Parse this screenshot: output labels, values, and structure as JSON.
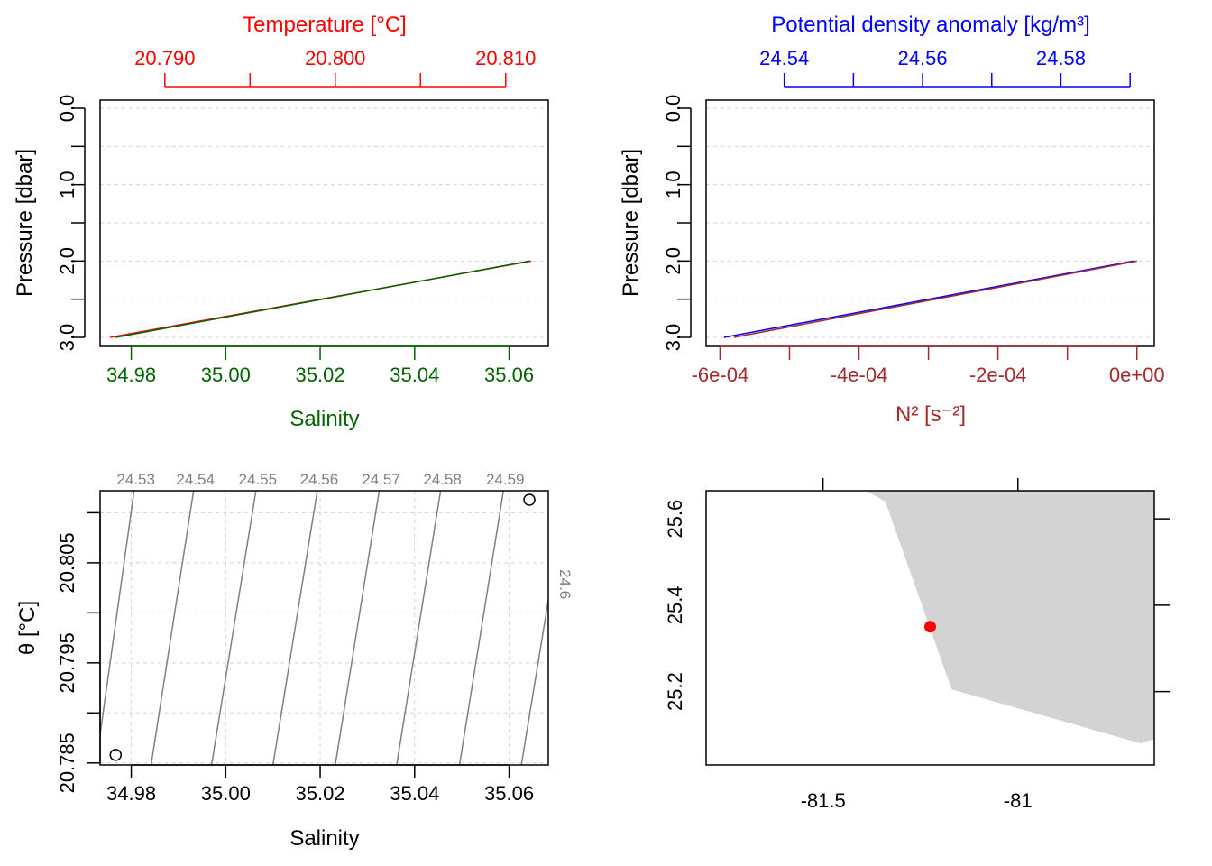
{
  "chart_data": [
    {
      "id": "profile-salinity-temperature",
      "type": "line",
      "top_axis_label": "Temperature [°C]",
      "top_axis_color": "#ff0000",
      "top_ticks": [
        "20.790",
        "20.800",
        "20.810"
      ],
      "top_ticks_all": [
        20.79,
        20.795,
        20.8,
        20.805,
        20.81
      ],
      "top_range": [
        20.7862,
        20.8125
      ],
      "bottom_axis_label": "Salinity",
      "bottom_axis_color": "#006400",
      "bottom_ticks": [
        "34.98",
        "35.00",
        "35.02",
        "35.04",
        "35.06"
      ],
      "bottom_ticks_all": [
        34.98,
        35.0,
        35.02,
        35.04,
        35.06
      ],
      "bottom_range": [
        34.9734,
        35.0683
      ],
      "ylabel": "Pressure [dbar]",
      "y_ticks": [
        "0.0",
        "1.0",
        "2.0",
        "3.0"
      ],
      "y_ticks_all": [
        0.0,
        0.5,
        1.0,
        1.5,
        2.0,
        2.5,
        3.0
      ],
      "y_range": [
        0.0,
        3.0
      ],
      "y_reversed": true,
      "grid": true,
      "series": [
        {
          "color": "#006400",
          "pressure": [
            2.0,
            3.0
          ],
          "salinity": [
            35.0643,
            34.9767
          ]
        },
        {
          "color": "#ff0000",
          "pressure": [
            2.0,
            3.0
          ],
          "temperature": [
            20.8115,
            20.7868
          ]
        }
      ]
    },
    {
      "id": "profile-n2-density",
      "type": "line",
      "top_axis_label": "Potential density anomaly [kg/m³]",
      "top_axis_color": "#0000ff",
      "top_ticks": [
        "24.54",
        "24.56",
        "24.58"
      ],
      "top_ticks_all": [
        24.54,
        24.55,
        24.56,
        24.57,
        24.58,
        24.59
      ],
      "top_range": [
        24.5287,
        24.5935
      ],
      "bottom_axis_label": "N² [s⁻²]",
      "bottom_axis_color": "#a52a2a",
      "bottom_ticks": [
        "-6e-04",
        "-4e-04",
        "-2e-04",
        "0e+00"
      ],
      "bottom_ticks_all": [
        -0.0006,
        -0.0005,
        -0.0004,
        -0.0003,
        -0.0002,
        -0.0001,
        0.0
      ],
      "bottom_range": [
        -0.00062,
        2.5e-05
      ],
      "ylabel": "Pressure [dbar]",
      "y_ticks": [
        "0.0",
        "1.0",
        "2.0",
        "3.0"
      ],
      "y_ticks_all": [
        0.0,
        0.5,
        1.0,
        1.5,
        2.0,
        2.5,
        3.0
      ],
      "y_range": [
        0.0,
        3.0
      ],
      "y_reversed": true,
      "grid": true,
      "series": [
        {
          "color": "#a52a2a",
          "pressure": [
            2.0,
            3.0
          ],
          "n2": [
            0.0,
            -0.00058
          ]
        },
        {
          "color": "#0000ff",
          "pressure": [
            2.0,
            3.0
          ],
          "sigma_theta": [
            24.5905,
            24.5313
          ]
        }
      ]
    },
    {
      "id": "ts-diagram",
      "type": "scatter",
      "xlabel": "Salinity",
      "ylabel": "θ [°C]",
      "x_ticks": [
        "34.98",
        "35.00",
        "35.02",
        "35.04",
        "35.06"
      ],
      "x_ticks_all": [
        34.98,
        35.0,
        35.02,
        35.04,
        35.06
      ],
      "x_range": [
        34.9734,
        35.0683
      ],
      "y_ticks": [
        "20.785",
        "20.795",
        "20.805"
      ],
      "y_ticks_all": [
        20.785,
        20.79,
        20.795,
        20.8,
        20.805,
        20.81
      ],
      "y_range": [
        20.7848,
        20.8122
      ],
      "grid": true,
      "points": [
        {
          "salinity": 34.9767,
          "theta": 20.7858
        },
        {
          "salinity": 35.0643,
          "theta": 20.8113
        }
      ],
      "isopycnals": [
        {
          "label": "24.53",
          "bottom_s": 34.9725,
          "top_s": 34.9806
        },
        {
          "label": "24.54",
          "bottom_s": 34.9842,
          "top_s": 34.9932
        },
        {
          "label": "24.55",
          "bottom_s": 34.997,
          "top_s": 35.0064
        },
        {
          "label": "24.56",
          "bottom_s": 35.01,
          "top_s": 35.0194
        },
        {
          "label": "24.57",
          "bottom_s": 35.0232,
          "top_s": 35.0325
        },
        {
          "label": "24.58",
          "bottom_s": 35.0362,
          "top_s": 35.0455
        },
        {
          "label": "24.59",
          "bottom_s": 35.0495,
          "top_s": 35.0588
        },
        {
          "label": "24.6",
          "bottom_s": 35.0626,
          "top_s": 35.0721
        }
      ],
      "isopycnal_color": "#808080"
    },
    {
      "id": "station-map",
      "type": "scatter",
      "x_ticks": [
        "-81.5",
        "-81"
      ],
      "x_ticks_all": [
        -81.5,
        -81.0
      ],
      "x_range": [
        -81.8,
        -80.65
      ],
      "y_ticks": [
        "25.2",
        "25.4",
        "25.6"
      ],
      "y_ticks_all": [
        25.2,
        25.4,
        25.6
      ],
      "y_range": [
        25.03,
        25.665
      ],
      "grid": false,
      "land_color": "#d3d3d3",
      "land_polygon": [
        [
          -81.39,
          25.665
        ],
        [
          -81.34,
          25.64
        ],
        [
          -81.17,
          25.205
        ],
        [
          -80.685,
          25.08
        ],
        [
          -80.65,
          25.09
        ],
        [
          -80.65,
          25.665
        ]
      ],
      "station": {
        "lon": -81.225,
        "lat": 25.35,
        "color": "#ff0000"
      }
    }
  ]
}
